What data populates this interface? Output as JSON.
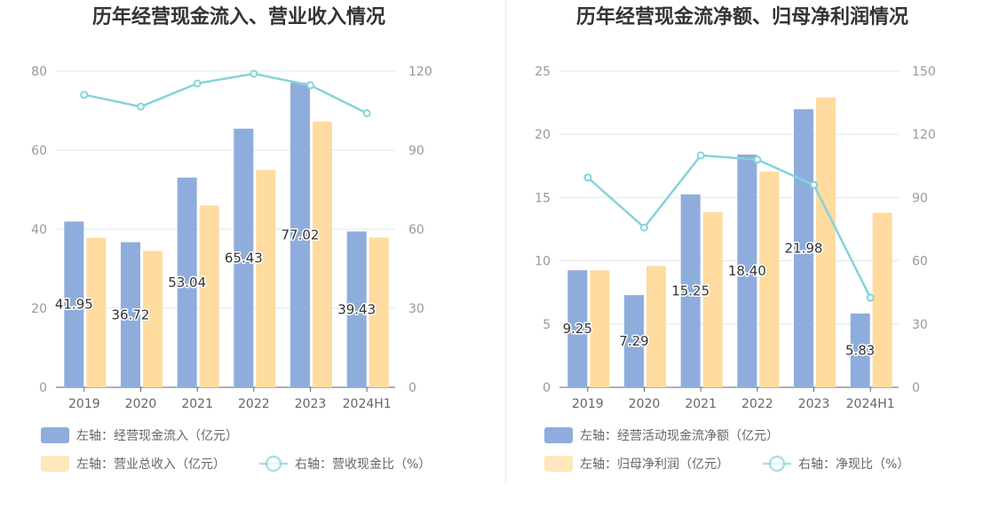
{
  "chart_data": [
    {
      "type": "bar",
      "title": "历年经营现金流入、营业收入情况",
      "categories": [
        "2019",
        "2020",
        "2021",
        "2022",
        "2023",
        "2024H1"
      ],
      "left_axis": {
        "min": 0,
        "max": 80,
        "ticks": [
          "0",
          "20",
          "40",
          "60",
          "80"
        ]
      },
      "right_axis": {
        "min": 0,
        "max": 120,
        "ticks": [
          "0",
          "30",
          "60",
          "90",
          "120"
        ]
      },
      "series": [
        {
          "name": "左轴：经营现金流入（亿元）",
          "kind": "bar",
          "axis": "left",
          "color": "#8eaddc",
          "values": [
            41.95,
            36.72,
            53.04,
            65.43,
            77.02,
            39.43
          ],
          "labels": [
            "41.95",
            "36.72",
            "53.04",
            "65.43",
            "77.02",
            "39.43"
          ]
        },
        {
          "name": "左轴：营业总收入（亿元）",
          "kind": "bar",
          "axis": "left",
          "color": "#ffdba0",
          "values": [
            37.8,
            34.5,
            46.0,
            55.0,
            67.2,
            37.9
          ]
        },
        {
          "name": "右轴：营收现金比（%）",
          "kind": "line",
          "axis": "right",
          "color": "#86d3d9",
          "values": [
            111.0,
            106.5,
            115.3,
            119.0,
            114.6,
            104.0
          ]
        }
      ],
      "grid": true,
      "legend_position": "bottom-left"
    },
    {
      "type": "bar",
      "title": "历年经营现金流净额、归母净利润情况",
      "categories": [
        "2019",
        "2020",
        "2021",
        "2022",
        "2023",
        "2024H1"
      ],
      "left_axis": {
        "min": 0,
        "max": 25,
        "ticks": [
          "0",
          "5",
          "10",
          "15",
          "20",
          "25"
        ]
      },
      "right_axis": {
        "min": 0,
        "max": 150,
        "ticks": [
          "0",
          "30",
          "60",
          "90",
          "120",
          "150"
        ]
      },
      "series": [
        {
          "name": "左轴：经营活动现金流净额（亿元）",
          "kind": "bar",
          "axis": "left",
          "color": "#8eaddc",
          "values": [
            9.25,
            7.29,
            15.25,
            18.4,
            21.98,
            5.83
          ],
          "labels": [
            "9.25",
            "7.29",
            "15.25",
            "18.40",
            "21.98",
            "5.83"
          ]
        },
        {
          "name": "左轴：归母净利润（亿元）",
          "kind": "bar",
          "axis": "left",
          "color": "#ffdba0",
          "values": [
            9.25,
            9.6,
            13.85,
            17.05,
            22.9,
            13.8
          ]
        },
        {
          "name": "右轴：净现比（%）",
          "kind": "line",
          "axis": "right",
          "color": "#86d3d9",
          "values": [
            99.5,
            75.8,
            110.0,
            108.0,
            96.0,
            42.5
          ]
        }
      ],
      "grid": true,
      "legend_position": "bottom-left"
    }
  ]
}
